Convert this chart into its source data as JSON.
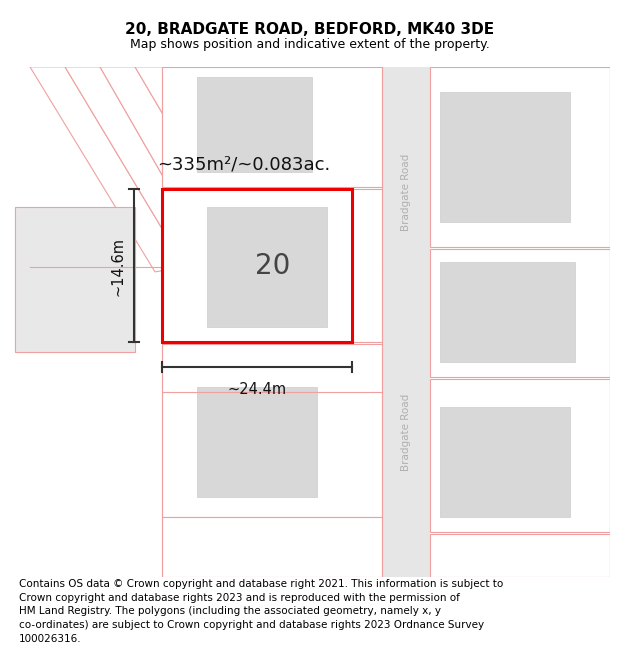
{
  "title": "20, BRADGATE ROAD, BEDFORD, MK40 3DE",
  "subtitle": "Map shows position and indicative extent of the property.",
  "footer": "Contains OS data © Crown copyright and database right 2021. This information is subject to\nCrown copyright and database rights 2023 and is reproduced with the permission of\nHM Land Registry. The polygons (including the associated geometry, namely x, y\nco-ordinates) are subject to Crown copyright and database rights 2023 Ordnance Survey\n100026316.",
  "bg_color": "#ffffff",
  "map_bg": "#ffffff",
  "road_fill": "#e8e8e8",
  "plot_outline_color": "#f0a0a0",
  "property_outline_color": "#ee0000",
  "inner_fill": "#e0e0e0",
  "road_label": "Bradgate Road",
  "property_number": "20",
  "area_text": "~335m²/~0.083ac.",
  "width_text": "~24.4m",
  "height_text": "~14.6m",
  "title_fontsize": 11,
  "subtitle_fontsize": 9,
  "footer_fontsize": 7.5
}
